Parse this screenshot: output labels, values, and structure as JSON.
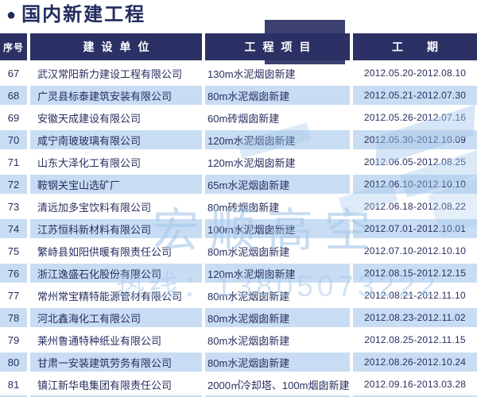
{
  "page": {
    "title_bullet": "●",
    "title": "国内新建工程"
  },
  "table": {
    "headers": {
      "index": "序号",
      "company": "建设单位",
      "project": "工程项目",
      "period": "工期"
    },
    "rows": [
      {
        "no": "67",
        "company": "武汉常阳新力建设工程有限公司",
        "project": "130m水泥烟囱新建",
        "period": "2012.05.20-2012.08.10"
      },
      {
        "no": "68",
        "company": "广灵县标泰建筑安装有限公司",
        "project": "80m水泥烟囱新建",
        "period": "2012.05.21-2012.07.30"
      },
      {
        "no": "69",
        "company": "安徽天成建设有限公司",
        "project": "60m砖烟囱新建",
        "period": "2012.05.26-2012.07.16"
      },
      {
        "no": "70",
        "company": "咸宁南玻玻璃有限公司",
        "project": "120m水泥烟囱新建",
        "period": "2012.05.30-2012.10.09"
      },
      {
        "no": "71",
        "company": "山东大泽化工有限公司",
        "project": "120m水泥烟囱新建",
        "period": "2012.06.05-2012.08.25"
      },
      {
        "no": "72",
        "company": "鞍钢关宝山选矿厂",
        "project": "65m水泥烟囱新建",
        "period": "2012.06.10-2012.10.10"
      },
      {
        "no": "73",
        "company": "清远加多宝饮料有限公司",
        "project": "80m砖烟囱新建",
        "period": "2012.06.18-2012.08.22"
      },
      {
        "no": "74",
        "company": "江苏恒科新材料有限公司",
        "project": "100m水泥烟囱新建",
        "period": "2012.07.01-2012.10.01"
      },
      {
        "no": "75",
        "company": "繁峙县如阳供暖有限责任公司",
        "project": "80m水泥烟囱新建",
        "period": "2012.07.10-2012.10.10"
      },
      {
        "no": "76",
        "company": "浙江逸盛石化股份有限公司",
        "project": "120m水泥烟囱新建",
        "period": "2012.08.15-2012.12.15"
      },
      {
        "no": "77",
        "company": "常州常宝精特能源管材有限公司",
        "project": "80m水泥烟囱新建",
        "period": "2012.08.21-2012.11.10"
      },
      {
        "no": "78",
        "company": "河北鑫海化工有限公司",
        "project": "80m水泥烟囱新建",
        "period": "2012.08.23-2012.11.02"
      },
      {
        "no": "79",
        "company": "莱州鲁通特种纸业有限公司",
        "project": "80m水泥烟囱新建",
        "period": "2012.08.25-2012.11.15"
      },
      {
        "no": "80",
        "company": "甘肃一安装建筑劳务有限公司",
        "project": "80m水泥烟囱新建",
        "period": "2012.08.26-2012.10.24"
      },
      {
        "no": "81",
        "company": "镇江新华电集团有限责任公司",
        "project": "2000㎡冷却塔、100m烟囱新建",
        "period": "2012.09.16-2013.03.28"
      }
    ]
  },
  "watermark": {
    "brand": "宏顺高空",
    "phone_line": "热线：13805073222"
  },
  "colors": {
    "header_navy": "#2b3164",
    "stripe_blue": "#c8ddf3",
    "text_navy": "#272e5f",
    "watermark_blue": "#a6c8ea",
    "title_navy": "#222b60"
  }
}
